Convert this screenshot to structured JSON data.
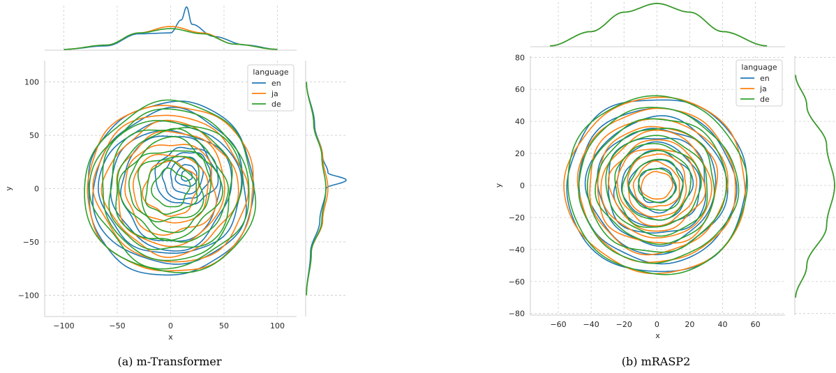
{
  "colors": {
    "en": "#1f77b4",
    "ja": "#ff7f0e",
    "de": "#2ca02c",
    "grid": "#cccccc",
    "spine": "#cccccc"
  },
  "chart_data": [
    {
      "type": "density_contour_jointplot",
      "caption": "(a) m-Transformer",
      "xlabel": "x",
      "ylabel": "y",
      "xlim": [
        -118,
        118
      ],
      "ylim": [
        -120,
        120
      ],
      "xticks": [
        -100,
        -50,
        0,
        50,
        100
      ],
      "yticks": [
        -100,
        -50,
        0,
        50,
        100
      ],
      "xtick_labels": [
        "−100",
        "−50",
        "0",
        "50",
        "100"
      ],
      "ytick_labels": [
        "−100",
        "−50",
        "0",
        "50",
        "100"
      ],
      "grid": true,
      "legend": {
        "title": "language",
        "location": "top-right",
        "entries": [
          "en",
          "ja",
          "de"
        ]
      },
      "series": [
        {
          "name": "en",
          "contour_radii": [
            80,
            72,
            64,
            56,
            48
          ],
          "center": [
            0,
            0
          ],
          "inner_center": [
            15,
            12
          ],
          "inner_radii": [
            28,
            22,
            16,
            10,
            5
          ],
          "marginal_x": {
            "x": [
              -100,
              -60,
              -30,
              0,
              10,
              15,
              20,
              40,
              70,
              100
            ],
            "density": [
              0.02,
              0.1,
              0.38,
              0.4,
              0.7,
              1.0,
              0.6,
              0.32,
              0.12,
              0.02
            ]
          },
          "marginal_y": {
            "y": [
              -100,
              -60,
              -30,
              0,
              8,
              15,
              30,
              60,
              100
            ],
            "density": [
              0.02,
              0.12,
              0.35,
              0.5,
              1.0,
              0.55,
              0.42,
              0.22,
              0.02
            ]
          }
        },
        {
          "name": "ja",
          "contour_radii": [
            79,
            70,
            61,
            52,
            43,
            34,
            25
          ],
          "center": [
            0,
            0
          ],
          "marginal_x": {
            "x": [
              -100,
              -60,
              -30,
              0,
              30,
              60,
              100
            ],
            "density": [
              0.02,
              0.12,
              0.4,
              0.55,
              0.4,
              0.14,
              0.02
            ]
          },
          "marginal_y": {
            "y": [
              -100,
              -60,
              -30,
              0,
              30,
              60,
              100
            ],
            "density": [
              0.02,
              0.14,
              0.42,
              0.55,
              0.42,
              0.2,
              0.02
            ]
          }
        },
        {
          "name": "de",
          "contour_radii": [
            80,
            73,
            66,
            59,
            52,
            45,
            38,
            31,
            24,
            17
          ],
          "center": [
            0,
            0
          ],
          "marginal_x": {
            "x": [
              -100,
              -60,
              -30,
              0,
              30,
              60,
              100
            ],
            "density": [
              0.02,
              0.12,
              0.4,
              0.5,
              0.38,
              0.14,
              0.02
            ]
          },
          "marginal_y": {
            "y": [
              -100,
              -60,
              -30,
              0,
              30,
              60,
              100
            ],
            "density": [
              0.02,
              0.14,
              0.4,
              0.5,
              0.4,
              0.2,
              0.02
            ]
          }
        }
      ]
    },
    {
      "type": "density_contour_jointplot",
      "caption": "(b) mRASP2",
      "xlabel": "x",
      "ylabel": "y",
      "xlim": [
        -77,
        78
      ],
      "ylim": [
        -81,
        81
      ],
      "xticks": [
        -60,
        -40,
        -20,
        0,
        20,
        40,
        60
      ],
      "yticks": [
        -80,
        -60,
        -40,
        -20,
        0,
        20,
        40,
        60,
        80
      ],
      "xtick_labels": [
        "−60",
        "−40",
        "−20",
        "0",
        "20",
        "40",
        "60"
      ],
      "ytick_labels": [
        "−80",
        "−60",
        "−40",
        "−20",
        "0",
        "20",
        "40",
        "60",
        "80"
      ],
      "grid": true,
      "legend": {
        "title": "language",
        "location": "top-right",
        "entries": [
          "en",
          "ja",
          "de"
        ]
      },
      "series": [
        {
          "name": "en",
          "contour_radii": [
            55,
            48,
            42,
            36,
            31,
            26,
            21,
            16,
            11
          ],
          "center": [
            0,
            0
          ],
          "marginal_x": {
            "x": [
              -65,
              -40,
              -20,
              0,
              20,
              40,
              67
            ],
            "density": [
              0.02,
              0.35,
              0.8,
              1.0,
              0.8,
              0.35,
              0.02
            ]
          },
          "marginal_y": {
            "y": [
              -70,
              -50,
              -25,
              0,
              25,
              50,
              69
            ],
            "density": [
              0.02,
              0.3,
              0.8,
              1.0,
              0.8,
              0.3,
              0.02
            ]
          }
        },
        {
          "name": "ja",
          "contour_radii": [
            55,
            48,
            42,
            37,
            33,
            28,
            24,
            19,
            14,
            9
          ],
          "center": [
            0,
            0
          ],
          "marginal_x": {
            "x": [
              -65,
              -40,
              -20,
              0,
              20,
              40,
              67
            ],
            "density": [
              0.02,
              0.35,
              0.8,
              1.0,
              0.8,
              0.35,
              0.02
            ]
          },
          "marginal_y": {
            "y": [
              -70,
              -50,
              -25,
              0,
              25,
              50,
              69
            ],
            "density": [
              0.02,
              0.3,
              0.8,
              1.0,
              0.8,
              0.3,
              0.02
            ]
          }
        },
        {
          "name": "de",
          "contour_radii": [
            55,
            48,
            42,
            36,
            31,
            26,
            21,
            16,
            11
          ],
          "center": [
            0,
            0
          ],
          "marginal_x": {
            "x": [
              -65,
              -40,
              -20,
              0,
              20,
              40,
              67
            ],
            "density": [
              0.02,
              0.35,
              0.8,
              1.0,
              0.8,
              0.35,
              0.02
            ]
          },
          "marginal_y": {
            "y": [
              -70,
              -50,
              -25,
              0,
              25,
              50,
              69
            ],
            "density": [
              0.02,
              0.3,
              0.8,
              1.0,
              0.8,
              0.3,
              0.02
            ]
          }
        }
      ]
    }
  ]
}
